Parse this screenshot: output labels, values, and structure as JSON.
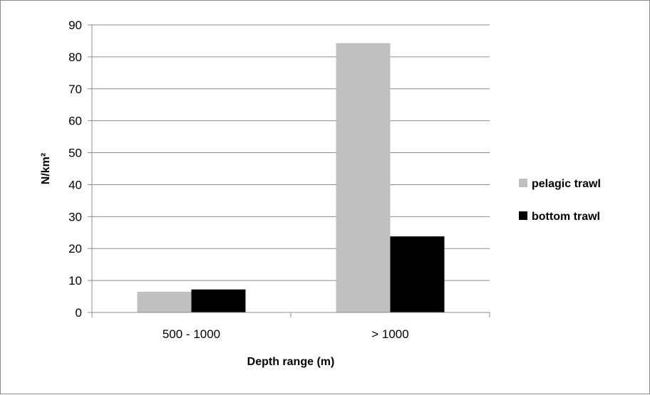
{
  "chart_data": {
    "type": "bar",
    "categories": [
      "500 - 1000",
      "> 1000"
    ],
    "series": [
      {
        "name": "pelagic trawl",
        "values": [
          6.5,
          84.3
        ],
        "color": "#c0c0c0"
      },
      {
        "name": "bottom trawl",
        "values": [
          7.2,
          23.8
        ],
        "color": "#000000"
      }
    ],
    "xlabel": "Depth range (m)",
    "ylabel": "N/km²",
    "ylim": [
      0,
      90
    ],
    "yticks": [
      0,
      10,
      20,
      30,
      40,
      50,
      60,
      70,
      80,
      90
    ],
    "grid": true,
    "legend_position": "right"
  }
}
